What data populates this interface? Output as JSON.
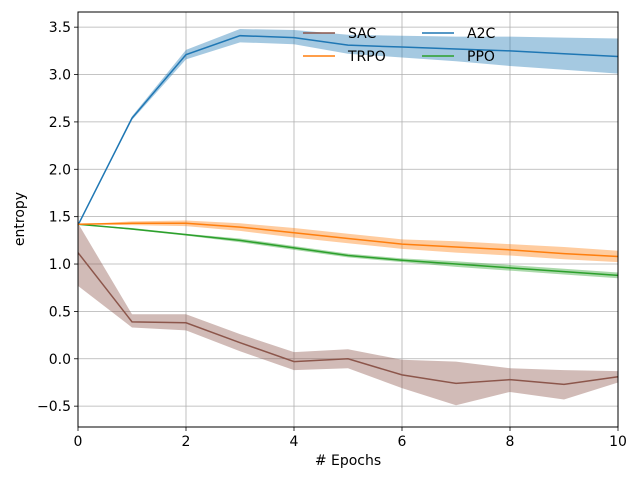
{
  "chart_data": {
    "type": "line",
    "xlabel": "# Epochs",
    "ylabel": "entropy",
    "xlim": [
      0,
      10
    ],
    "ylim": [
      -0.72,
      3.66
    ],
    "x_ticks": [
      0,
      2,
      4,
      6,
      8,
      10
    ],
    "y_ticks": [
      -0.5,
      0.0,
      0.5,
      1.0,
      1.5,
      2.0,
      2.5,
      3.0,
      3.5
    ],
    "y_tick_labels": [
      "−0.5",
      "0.0",
      "0.5",
      "1.0",
      "1.5",
      "2.0",
      "2.5",
      "3.0",
      "3.5"
    ],
    "grid": true,
    "legend_position": "top-right",
    "legend_order": [
      "SAC",
      "TRPO",
      "A2C",
      "PPO"
    ],
    "x": [
      0,
      1,
      2,
      3,
      4,
      5,
      6,
      7,
      8,
      9,
      10
    ],
    "series": [
      {
        "name": "SAC",
        "color": "#8c564b",
        "values": [
          1.12,
          0.39,
          0.38,
          0.17,
          -0.03,
          0.0,
          -0.17,
          -0.26,
          -0.22,
          -0.27,
          -0.19
        ],
        "lower": [
          0.77,
          0.33,
          0.3,
          0.08,
          -0.12,
          -0.1,
          -0.31,
          -0.49,
          -0.35,
          -0.43,
          -0.25
        ],
        "upper": [
          1.43,
          0.47,
          0.47,
          0.26,
          0.07,
          0.1,
          -0.01,
          -0.03,
          -0.1,
          -0.12,
          -0.13
        ]
      },
      {
        "name": "A2C",
        "color": "#1f77b4",
        "values": [
          1.41,
          2.54,
          3.21,
          3.41,
          3.39,
          3.31,
          3.29,
          3.27,
          3.25,
          3.22,
          3.19
        ],
        "lower": [
          1.41,
          2.52,
          3.16,
          3.34,
          3.32,
          3.22,
          3.18,
          3.14,
          3.09,
          3.05,
          3.01
        ],
        "upper": [
          1.41,
          2.56,
          3.26,
          3.48,
          3.47,
          3.42,
          3.41,
          3.4,
          3.4,
          3.39,
          3.38
        ]
      },
      {
        "name": "PPO",
        "color": "#2ca02c",
        "values": [
          1.42,
          1.37,
          1.31,
          1.25,
          1.17,
          1.09,
          1.04,
          1.0,
          0.96,
          0.92,
          0.88
        ],
        "lower": [
          1.42,
          1.36,
          1.3,
          1.23,
          1.15,
          1.07,
          1.02,
          0.97,
          0.93,
          0.89,
          0.85
        ],
        "upper": [
          1.42,
          1.38,
          1.32,
          1.27,
          1.19,
          1.11,
          1.06,
          1.03,
          0.99,
          0.95,
          0.91
        ]
      },
      {
        "name": "TRPO",
        "color": "#ff7f0e",
        "values": [
          1.42,
          1.43,
          1.43,
          1.39,
          1.33,
          1.27,
          1.21,
          1.18,
          1.15,
          1.11,
          1.08
        ],
        "lower": [
          1.42,
          1.41,
          1.4,
          1.35,
          1.28,
          1.22,
          1.16,
          1.12,
          1.09,
          1.05,
          1.02
        ],
        "upper": [
          1.42,
          1.45,
          1.46,
          1.43,
          1.38,
          1.32,
          1.26,
          1.24,
          1.21,
          1.18,
          1.14
        ]
      }
    ]
  }
}
